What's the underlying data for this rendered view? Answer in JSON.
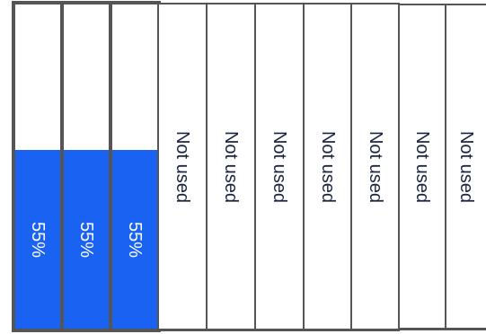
{
  "colors": {
    "used_fill": "#1a63f2",
    "used_text": "#ffffff",
    "unused_text": "#1c2340",
    "border": "#555555"
  },
  "slots": [
    {
      "label": "55%",
      "used": true,
      "utilization": 0.55
    },
    {
      "label": "55%",
      "used": true,
      "utilization": 0.55
    },
    {
      "label": "55%",
      "used": true,
      "utilization": 0.55
    },
    {
      "label": "Not used",
      "used": false
    },
    {
      "label": "Not used",
      "used": false
    },
    {
      "label": "Not used",
      "used": false
    },
    {
      "label": "Not used",
      "used": false
    },
    {
      "label": "Not used",
      "used": false
    },
    {
      "label": "Not used",
      "used": false
    },
    {
      "label": "Not used",
      "used": false
    }
  ]
}
